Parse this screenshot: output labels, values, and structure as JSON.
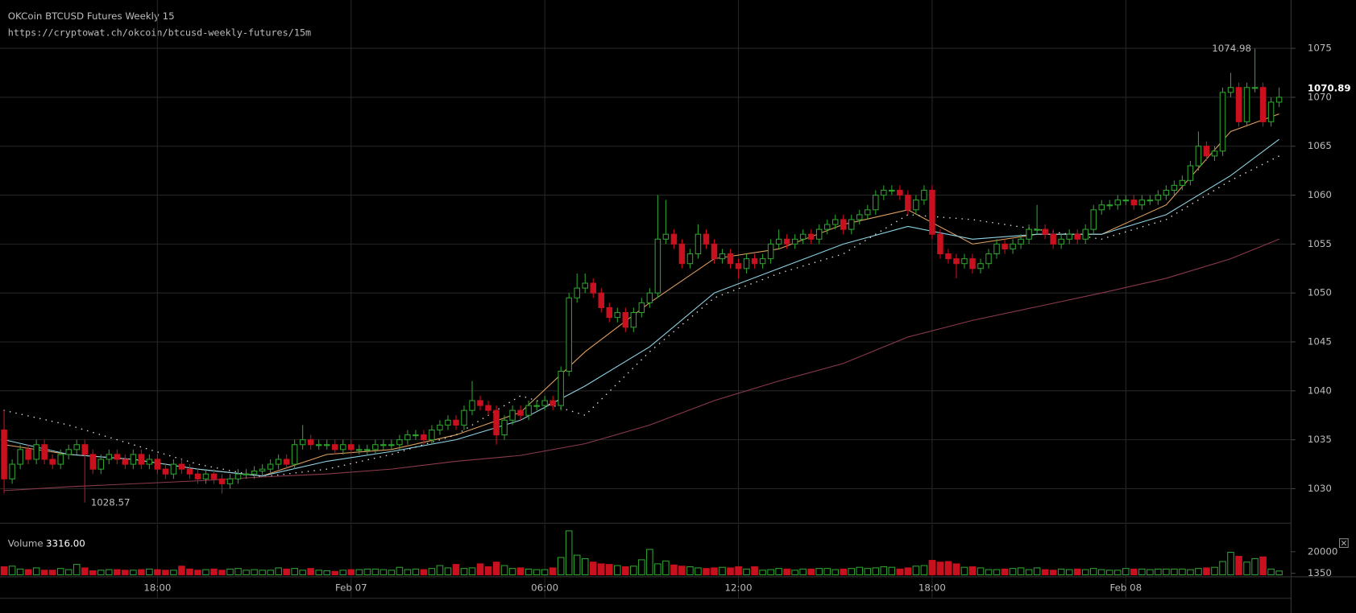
{
  "chart_data": {
    "type": "candlestick",
    "title": "OKCoin BTCUSD Futures Weekly 15",
    "subtitle": "https://cryptowat.ch/okcoin/btcusd-weekly-futures/15m",
    "x": [
      13.25,
      13.5,
      13.75,
      14,
      14.25,
      14.5,
      14.75,
      15,
      15.25,
      15.5,
      15.75,
      16,
      16.25,
      16.5,
      16.75,
      17,
      17.25,
      17.5,
      17.75,
      18,
      18.25,
      18.5,
      18.75,
      19,
      19.25,
      19.5,
      19.75,
      20,
      20.25,
      20.5,
      20.75,
      21,
      21.25,
      21.5,
      21.75,
      22,
      22.25,
      22.5,
      22.75,
      23,
      23.25,
      23.5,
      23.75,
      24,
      24.25,
      24.5,
      24.75,
      25,
      25.25,
      25.5,
      25.75,
      26,
      26.25,
      26.5,
      26.75,
      27,
      27.25,
      27.5,
      27.75,
      28,
      28.25,
      28.5,
      28.75,
      29,
      29.25,
      29.5,
      29.75,
      30,
      30.25,
      30.5,
      30.75,
      31,
      31.25,
      31.5,
      31.75,
      32,
      32.25,
      32.5,
      32.75,
      33,
      33.25,
      33.5,
      33.75,
      34,
      34.25,
      34.5,
      34.75,
      35,
      35.25,
      35.5,
      35.75,
      36,
      36.25,
      36.5,
      36.75,
      37,
      37.25,
      37.5,
      37.75,
      38,
      38.25,
      38.5,
      38.75,
      39,
      39.25,
      39.5,
      39.75,
      40,
      40.25,
      40.5,
      40.75,
      41,
      41.25,
      41.5,
      41.75,
      42,
      42.25,
      42.5,
      42.75,
      43,
      43.25,
      43.5,
      43.75,
      44,
      44.25,
      44.5,
      44.75,
      45,
      45.25,
      45.5,
      45.75,
      46,
      46.25,
      46.5,
      46.75,
      47,
      47.25,
      47.5,
      47.75,
      48,
      48.25,
      48.5,
      48.75,
      49,
      49.25,
      49.5,
      49.75,
      50,
      50.25,
      50.5,
      50.75,
      51,
      51.25,
      51.5,
      51.75,
      52,
      52.25,
      52.5,
      52.75
    ],
    "open": [
      1036,
      1031,
      1032.5,
      1034,
      1033,
      1034.5,
      1033,
      1032.5,
      1033.5,
      1034,
      1034.5,
      1033.5,
      1032,
      1033,
      1033.5,
      1033,
      1032.5,
      1033.5,
      1032.5,
      1033,
      1032,
      1031.5,
      1032.5,
      1032,
      1031.5,
      1031,
      1031.5,
      1031,
      1030.5,
      1031,
      1031.5,
      1031.5,
      1031.8,
      1032,
      1032.5,
      1033,
      1032.5,
      1034.5,
      1035,
      1034.5,
      1034.5,
      1034.5,
      1034,
      1034.5,
      1034,
      1034,
      1034,
      1034.5,
      1034.5,
      1034.5,
      1035,
      1035.5,
      1035.5,
      1035,
      1036,
      1036.5,
      1037,
      1036.5,
      1038,
      1039,
      1038.5,
      1038,
      1035.5,
      1037,
      1038,
      1037.5,
      1038.5,
      1038.5,
      1039,
      1038.5,
      1042,
      1049.5,
      1050.5,
      1051,
      1050,
      1048.5,
      1047.5,
      1048,
      1046.5,
      1048,
      1049,
      1050,
      1055.5,
      1056,
      1055,
      1053,
      1054,
      1056,
      1055,
      1053.5,
      1054,
      1053,
      1052.5,
      1053.5,
      1053,
      1053.5,
      1055,
      1055.5,
      1055,
      1055.5,
      1056,
      1055.5,
      1056.5,
      1057,
      1057.5,
      1056.5,
      1057.5,
      1058,
      1058.5,
      1060,
      1060.5,
      1060.5,
      1060,
      1058.5,
      1059.5,
      1060.5,
      1056,
      1054,
      1053.5,
      1053,
      1053.5,
      1052.5,
      1053,
      1054,
      1055,
      1054.5,
      1055,
      1055.5,
      1056.5,
      1056.5,
      1056,
      1055,
      1055.5,
      1056,
      1055.5,
      1056.5,
      1058.5,
      1059,
      1059,
      1059.5,
      1059.5,
      1059,
      1059.5,
      1059.5,
      1060,
      1060.5,
      1061,
      1061.5,
      1063,
      1065,
      1064,
      1064.5,
      1070.5,
      1071,
      1067.5,
      1071,
      1071,
      1067.5,
      1069.5
    ],
    "high": [
      1038,
      1033,
      1034.5,
      1034.5,
      1035,
      1035,
      1033.5,
      1034,
      1034.5,
      1035,
      1035,
      1034,
      1033.5,
      1034,
      1034,
      1033.5,
      1034,
      1034,
      1033.5,
      1033.5,
      1032.5,
      1033,
      1033,
      1032.5,
      1032,
      1032,
      1032,
      1031.5,
      1031.5,
      1032,
      1032,
      1032.3,
      1032.5,
      1033,
      1033.5,
      1033.5,
      1035,
      1036.5,
      1035.5,
      1035,
      1035,
      1035,
      1035,
      1035,
      1034.5,
      1034.5,
      1035,
      1035,
      1035,
      1035.5,
      1036,
      1036,
      1036,
      1036.5,
      1037,
      1037.5,
      1037.5,
      1038.5,
      1041,
      1039.5,
      1039,
      1038.5,
      1037.5,
      1038.5,
      1038.5,
      1039,
      1039,
      1039.5,
      1039.5,
      1042.5,
      1050,
      1052,
      1052,
      1051.5,
      1050.5,
      1049,
      1048.5,
      1048.5,
      1048.5,
      1049.5,
      1050.5,
      1060,
      1059.5,
      1056.5,
      1055.5,
      1054.5,
      1057,
      1056.5,
      1055.5,
      1054.5,
      1054.5,
      1053.5,
      1054,
      1054,
      1054,
      1055.5,
      1056.5,
      1056,
      1056,
      1056.5,
      1056.5,
      1057,
      1057.5,
      1058,
      1058,
      1058,
      1058.5,
      1059,
      1060.5,
      1061,
      1061,
      1061,
      1060.5,
      1060,
      1061,
      1061,
      1056.5,
      1054.5,
      1054,
      1054,
      1054,
      1053.5,
      1054.5,
      1055.5,
      1055.5,
      1055.5,
      1056,
      1057,
      1059,
      1057,
      1056.5,
      1056,
      1056.5,
      1056.5,
      1057,
      1059,
      1059.5,
      1059.5,
      1060,
      1060,
      1060,
      1060,
      1060,
      1060.5,
      1061,
      1061.5,
      1062,
      1063.5,
      1066.5,
      1065.5,
      1065,
      1071,
      1072.5,
      1071.5,
      1071.5,
      1074.98,
      1071.5,
      1070,
      1071
    ],
    "low": [
      1029.5,
      1030.5,
      1032,
      1032.5,
      1032.5,
      1032.5,
      1032,
      1032,
      1033,
      1033.5,
      1028.57,
      1031.5,
      1031.5,
      1032.5,
      1032.5,
      1032,
      1032,
      1032,
      1032,
      1031.5,
      1031,
      1031,
      1031.5,
      1031,
      1030.5,
      1030.5,
      1030.5,
      1029.5,
      1030,
      1030.5,
      1031,
      1031,
      1031.3,
      1031.5,
      1032,
      1032,
      1032,
      1034,
      1034,
      1034,
      1034,
      1033.5,
      1033.5,
      1033.5,
      1033.5,
      1033.5,
      1033.5,
      1034,
      1034,
      1034,
      1034.5,
      1035,
      1034.5,
      1034.5,
      1035.5,
      1036,
      1036,
      1036,
      1037.5,
      1038,
      1037.5,
      1034.5,
      1035,
      1036.5,
      1037,
      1037,
      1038,
      1038,
      1038,
      1038,
      1041.5,
      1049,
      1050,
      1049.5,
      1048,
      1047,
      1047,
      1046,
      1046,
      1047.5,
      1048.5,
      1049.5,
      1055,
      1054.5,
      1052.5,
      1052.5,
      1053.5,
      1054.5,
      1053,
      1053,
      1052.5,
      1051.5,
      1052,
      1052.5,
      1052.5,
      1053,
      1054.5,
      1054.5,
      1054.5,
      1055,
      1055,
      1055,
      1056,
      1056.5,
      1056,
      1056,
      1057,
      1057.5,
      1058,
      1059.5,
      1060,
      1059.5,
      1058,
      1058,
      1059,
      1055.5,
      1053.5,
      1053,
      1051.5,
      1052.5,
      1052,
      1052,
      1052.5,
      1053.5,
      1054,
      1054,
      1054.5,
      1055,
      1056,
      1055.5,
      1054.5,
      1054.5,
      1055,
      1055,
      1055,
      1056,
      1058,
      1058.5,
      1058.5,
      1059,
      1058.5,
      1058.5,
      1059,
      1059,
      1059.5,
      1060,
      1060.5,
      1061,
      1062.5,
      1063.5,
      1063.5,
      1064,
      1070,
      1067,
      1067,
      1070.5,
      1067,
      1067,
      1069
    ],
    "close": [
      1031,
      1032.5,
      1034,
      1033,
      1034.5,
      1033,
      1032.5,
      1033.5,
      1034,
      1034.5,
      1033.5,
      1032,
      1033,
      1033.5,
      1033,
      1032.5,
      1033.5,
      1032.5,
      1033,
      1032,
      1031.5,
      1032.5,
      1032,
      1031.5,
      1031,
      1031.5,
      1031,
      1030.5,
      1031,
      1031.5,
      1031.5,
      1031.8,
      1032,
      1032.5,
      1033,
      1032.5,
      1034.5,
      1035,
      1034.5,
      1034.5,
      1034.5,
      1034,
      1034.5,
      1034,
      1034,
      1034,
      1034.5,
      1034.5,
      1034.5,
      1035,
      1035.5,
      1035.5,
      1035,
      1036,
      1036.5,
      1037,
      1036.5,
      1038,
      1039,
      1038.5,
      1038,
      1035.5,
      1037,
      1038,
      1037.5,
      1038.5,
      1038.5,
      1039,
      1038.5,
      1042,
      1049.5,
      1050.5,
      1051,
      1050,
      1048.5,
      1047.5,
      1048,
      1046.5,
      1048,
      1049,
      1050,
      1055.5,
      1056,
      1055,
      1053,
      1054,
      1056,
      1055,
      1053.5,
      1054,
      1053,
      1052.5,
      1053.5,
      1053,
      1053.5,
      1055,
      1055.5,
      1055,
      1055.5,
      1056,
      1055.5,
      1056.5,
      1057,
      1057.5,
      1056.5,
      1057.5,
      1058,
      1058.5,
      1060,
      1060.5,
      1060.5,
      1060,
      1058.5,
      1059.5,
      1060.5,
      1056,
      1054,
      1053.5,
      1053,
      1053.5,
      1052.5,
      1053,
      1054,
      1055,
      1054.5,
      1055,
      1055.5,
      1056.5,
      1056.5,
      1056,
      1055,
      1055.5,
      1056,
      1055.5,
      1056.5,
      1058.5,
      1059,
      1059,
      1059.5,
      1059.5,
      1059,
      1059.5,
      1059.5,
      1060,
      1060.5,
      1061,
      1061.5,
      1063,
      1065,
      1064,
      1064.5,
      1070.5,
      1071,
      1067.5,
      1071,
      1071,
      1067.5,
      1069.5,
      1070
    ],
    "up_color": "#2ea02e",
    "down_color": "#c8101e",
    "xlim": [
      13.125,
      53.12
    ],
    "xticks": [
      {
        "value": 18,
        "label": "18:00"
      },
      {
        "value": 24,
        "label": "Feb 07"
      },
      {
        "value": 30,
        "label": "06:00"
      },
      {
        "value": 36,
        "label": "12:00"
      },
      {
        "value": 42,
        "label": "18:00"
      },
      {
        "value": 48,
        "label": "Feb 08"
      }
    ],
    "ylim": [
      1026.56,
      1079.94
    ],
    "yticks": [
      1030,
      1035,
      1040,
      1045,
      1050,
      1055,
      1060,
      1065,
      1070,
      1075
    ],
    "grid": true,
    "high_label": 1074.98,
    "low_label": 1028.57,
    "last_price": 1070.89,
    "overlays": [
      {
        "color": "#e0a060",
        "dotted": false,
        "x": [
          13.25,
          15.25,
          17.25,
          19.25,
          21.25,
          23.25,
          25.25,
          27.25,
          29.25,
          31.25,
          33.25,
          35.25,
          37.25,
          39.25,
          41.25,
          43.25,
          45.25,
          47.25,
          49.25,
          51.25,
          52.75
        ],
        "values": [
          1034.5,
          1033.5,
          1033,
          1032,
          1031.3,
          1033.5,
          1034,
          1035.5,
          1037.8,
          1044,
          1049,
          1053.5,
          1054.5,
          1057,
          1058.5,
          1055,
          1056,
          1056,
          1059,
          1066.5,
          1068.3
        ]
      },
      {
        "color": "#8fd3e6",
        "dotted": false,
        "x": [
          13.25,
          15.25,
          17.25,
          19.25,
          21.25,
          23.25,
          25.25,
          27.25,
          29.25,
          31.25,
          33.25,
          35.25,
          37.25,
          39.25,
          41.25,
          43.25,
          45.25,
          47.25,
          49.25,
          51.25,
          52.75
        ],
        "values": [
          1035,
          1033.5,
          1033,
          1032,
          1031.3,
          1032.8,
          1033.8,
          1035,
          1037,
          1040.5,
          1044.5,
          1050,
          1052.5,
          1055,
          1056.8,
          1055.5,
          1056,
          1056,
          1058,
          1062,
          1065.7
        ]
      },
      {
        "color": "#dddddd",
        "dotted": true,
        "x": [
          13.25,
          15.25,
          17.25,
          19.25,
          21.25,
          23.25,
          25.25,
          27.25,
          29.25,
          31.25,
          33.25,
          35.25,
          37.25,
          39.25,
          41.25,
          43.25,
          45.25,
          47.25,
          49.25,
          51.25,
          52.75
        ],
        "values": [
          1038,
          1036.5,
          1034.5,
          1032.5,
          1031.2,
          1032,
          1033.5,
          1035.5,
          1039.5,
          1037.5,
          1044,
          1049.5,
          1052,
          1054,
          1058,
          1057.5,
          1056.5,
          1055.5,
          1057.5,
          1061.5,
          1064
        ]
      },
      {
        "color": "#8b3a4c",
        "dotted": false,
        "x": [
          13.25,
          15.25,
          17.25,
          19.25,
          21.25,
          23.25,
          25.25,
          27.25,
          29.25,
          31.25,
          33.25,
          35.25,
          37.25,
          39.25,
          41.25,
          43.25,
          45.25,
          47.25,
          49.25,
          51.25,
          52.75
        ],
        "values": [
          1029.8,
          1030.2,
          1030.5,
          1030.8,
          1031.2,
          1031.5,
          1032,
          1032.8,
          1033.4,
          1034.6,
          1036.5,
          1039,
          1041,
          1042.8,
          1045.5,
          1047.2,
          1048.6,
          1050,
          1051.5,
          1053.5,
          1055.5
        ]
      }
    ],
    "volume": {
      "label": "Volume",
      "last": {
        "value": 3316,
        "label": "3316.00"
      },
      "ylim": [
        0,
        37900
      ],
      "yticks": [
        20000,
        1350
      ],
      "values": [
        7000,
        7500,
        5000,
        4500,
        6000,
        4000,
        4000,
        5500,
        4500,
        9000,
        6000,
        3500,
        4000,
        4500,
        4500,
        4000,
        4000,
        4500,
        5000,
        4500,
        4000,
        4000,
        7500,
        5000,
        4000,
        4500,
        5000,
        4000,
        5000,
        5500,
        4000,
        4500,
        4000,
        4000,
        6000,
        5000,
        5500,
        4000,
        5500,
        4000,
        3500,
        3000,
        4000,
        4500,
        4500,
        5000,
        5000,
        4500,
        4000,
        6500,
        4500,
        5000,
        4500,
        5500,
        8000,
        6000,
        9000,
        5500,
        6000,
        9500,
        7000,
        11000,
        8000,
        5500,
        6000,
        5000,
        4500,
        4500,
        6000,
        15000,
        38000,
        17000,
        14000,
        11000,
        9500,
        9000,
        8000,
        7000,
        7500,
        13000,
        22000,
        9500,
        12000,
        8500,
        7500,
        7000,
        6000,
        5500,
        6000,
        6500,
        6000,
        7000,
        5000,
        7000,
        4000,
        4500,
        5500,
        5000,
        4000,
        5000,
        5000,
        5500,
        5500,
        4500,
        5000,
        5500,
        6500,
        5500,
        6000,
        7000,
        6500,
        5000,
        6000,
        7500,
        8000,
        12500,
        11000,
        11500,
        9500,
        6500,
        7000,
        6000,
        4500,
        4500,
        5000,
        5500,
        6000,
        4500,
        6000,
        4500,
        4000,
        5000,
        4500,
        5000,
        4500,
        5500,
        4500,
        4000,
        4000,
        5500,
        5000,
        5000,
        4500,
        5000,
        5000,
        5000,
        5000,
        4500,
        5500,
        6000,
        6500,
        11500,
        19500,
        16000,
        11000,
        14000,
        15500,
        5000,
        3316
      ]
    }
  }
}
